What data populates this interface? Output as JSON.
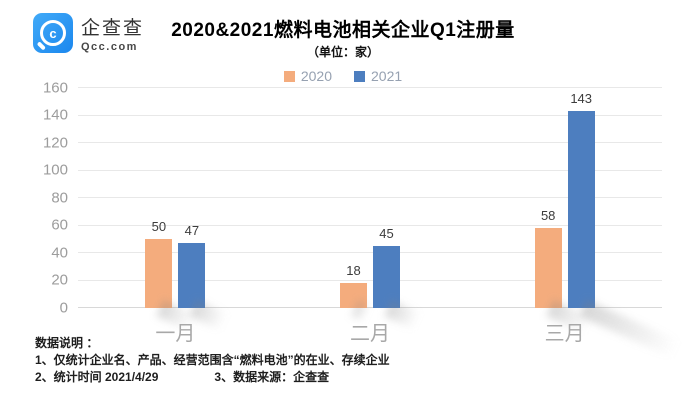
{
  "brand": {
    "name": "企查查",
    "domain": "Qcc.com"
  },
  "header": {
    "title": "2020&2021燃料电池相关企业Q1注册量",
    "subtitle": "（单位：家）"
  },
  "chart_data": {
    "type": "bar",
    "categories": [
      "一月",
      "二月",
      "三月"
    ],
    "series": [
      {
        "name": "2020",
        "color": "#F4AC7D",
        "values": [
          50,
          18,
          58
        ]
      },
      {
        "name": "2021",
        "color": "#4D7EBF",
        "values": [
          47,
          45,
          143
        ]
      }
    ],
    "title": "2020&2021燃料电池相关企业Q1注册量",
    "unit_label": "（单位：家）",
    "xlabel": "",
    "ylabel": "",
    "ylim": [
      0,
      160
    ],
    "ytick_step": 20,
    "grid": true,
    "legend_position": "top"
  },
  "notes": {
    "heading": "数据说明 ：",
    "line1": "1、仅统计企业名、产品、经营范围含“燃料电池”的在业、存续企业",
    "line2_a": "2、统计时间 2021/4/29",
    "line2_b": "3、数据来源：企查查"
  },
  "colors": {
    "brand_blue": "#2B96F3",
    "bar_2020": "#F4AC7D",
    "bar_2021": "#4D7EBF",
    "grid": "#E8E8E8",
    "axis_text": "#9C9C9C",
    "legend_text": "#96A1B1"
  }
}
